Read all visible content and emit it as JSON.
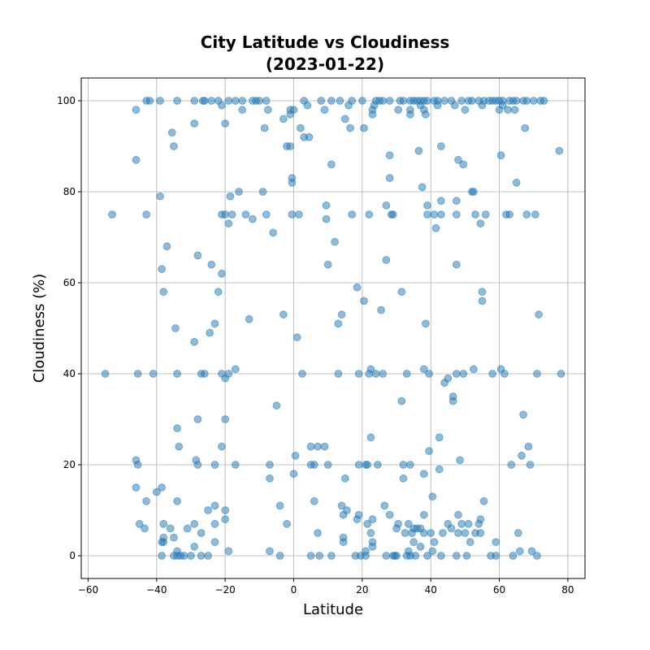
{
  "chart_data": {
    "type": "scatter",
    "title": [
      "City Latitude vs Cloudiness",
      "(2023-01-22)"
    ],
    "xlabel": "Latitude",
    "ylabel": "Cloudiness (%)",
    "xlim": [
      -62,
      85
    ],
    "ylim": [
      -5,
      105
    ],
    "xticks": [
      -60,
      -40,
      -20,
      0,
      20,
      40,
      60,
      80
    ],
    "yticks": [
      0,
      20,
      40,
      60,
      80,
      100
    ],
    "grid": true,
    "marker_color": "#1f77b4",
    "marker_alpha": 0.5,
    "points": [
      [
        -55,
        40
      ],
      [
        -53,
        75
      ],
      [
        -46,
        98
      ],
      [
        -46,
        87
      ],
      [
        -46,
        21
      ],
      [
        -45.5,
        20
      ],
      [
        -46,
        15
      ],
      [
        -45.5,
        40
      ],
      [
        -45,
        7
      ],
      [
        -43,
        100
      ],
      [
        -43,
        75
      ],
      [
        -43,
        12
      ],
      [
        -42,
        100
      ],
      [
        -43.5,
        6
      ],
      [
        -41,
        40
      ],
      [
        -40,
        14
      ],
      [
        -39,
        100
      ],
      [
        -39,
        79
      ],
      [
        -38.5,
        63
      ],
      [
        -38,
        58
      ],
      [
        -38.5,
        15
      ],
      [
        -38,
        7
      ],
      [
        -38,
        4
      ],
      [
        -38,
        3
      ],
      [
        -38.5,
        3
      ],
      [
        -38.5,
        0
      ],
      [
        -37,
        68
      ],
      [
        -36,
        6
      ],
      [
        -35.5,
        93
      ],
      [
        -35,
        90
      ],
      [
        -34.5,
        50
      ],
      [
        -34,
        28
      ],
      [
        -34,
        40
      ],
      [
        -34,
        12
      ],
      [
        -35,
        4
      ],
      [
        -34,
        1
      ],
      [
        -33.5,
        24
      ],
      [
        -34,
        100
      ],
      [
        -35,
        0
      ],
      [
        -34,
        0
      ],
      [
        -33,
        0
      ],
      [
        -32,
        0
      ],
      [
        -31,
        6
      ],
      [
        -30,
        0
      ],
      [
        -29,
        95
      ],
      [
        -29,
        47
      ],
      [
        -29,
        100
      ],
      [
        -29,
        7
      ],
      [
        -29,
        2
      ],
      [
        -28.5,
        21
      ],
      [
        -28,
        66
      ],
      [
        -28,
        30
      ],
      [
        -28,
        20
      ],
      [
        -27,
        40
      ],
      [
        -27,
        5
      ],
      [
        -27,
        0
      ],
      [
        -26.5,
        100
      ],
      [
        -26,
        100
      ],
      [
        -26,
        40
      ],
      [
        -25,
        10
      ],
      [
        -25,
        0
      ],
      [
        -24.5,
        49
      ],
      [
        -24,
        64
      ],
      [
        -24,
        100
      ],
      [
        -23,
        51
      ],
      [
        -23,
        20
      ],
      [
        -23,
        11
      ],
      [
        -23,
        7
      ],
      [
        -23,
        3
      ],
      [
        -22,
        58
      ],
      [
        -22,
        100
      ],
      [
        -21,
        99
      ],
      [
        -21,
        75
      ],
      [
        -21,
        62
      ],
      [
        -21,
        40
      ],
      [
        -21,
        24
      ],
      [
        -20,
        95
      ],
      [
        -20,
        75
      ],
      [
        -20,
        39
      ],
      [
        -20,
        30
      ],
      [
        -20,
        10
      ],
      [
        -20,
        8
      ],
      [
        -19,
        73
      ],
      [
        -19,
        100
      ],
      [
        -19,
        40
      ],
      [
        -18.5,
        79
      ],
      [
        -18,
        75
      ],
      [
        -19,
        1
      ],
      [
        -17,
        100
      ],
      [
        -17,
        41
      ],
      [
        -17,
        20
      ],
      [
        -16,
        80
      ],
      [
        -15,
        100
      ],
      [
        -15,
        98
      ],
      [
        -14,
        75
      ],
      [
        -13,
        52
      ],
      [
        -12,
        100
      ],
      [
        -12,
        74
      ],
      [
        -11,
        100
      ],
      [
        -10,
        100
      ],
      [
        -9,
        80
      ],
      [
        -8.5,
        94
      ],
      [
        -8,
        100
      ],
      [
        -8,
        75
      ],
      [
        -7.5,
        98
      ],
      [
        -7,
        20
      ],
      [
        -7,
        17
      ],
      [
        -7,
        1
      ],
      [
        -6,
        71
      ],
      [
        -5,
        33
      ],
      [
        -4,
        11
      ],
      [
        -4,
        0
      ],
      [
        -3,
        53
      ],
      [
        -3,
        96
      ],
      [
        -2,
        90
      ],
      [
        -2,
        7
      ],
      [
        -1,
        98
      ],
      [
        -1,
        97
      ],
      [
        -1,
        90
      ],
      [
        -0.5,
        83
      ],
      [
        -0.5,
        82
      ],
      [
        -0.5,
        75
      ],
      [
        0,
        18
      ],
      [
        0,
        98
      ],
      [
        0.5,
        22
      ],
      [
        1,
        48
      ],
      [
        1.5,
        75
      ],
      [
        2,
        94
      ],
      [
        2.5,
        40
      ],
      [
        3,
        92
      ],
      [
        3,
        100
      ],
      [
        4,
        99
      ],
      [
        4.5,
        92
      ],
      [
        5,
        24
      ],
      [
        5,
        20
      ],
      [
        5,
        0
      ],
      [
        6,
        12
      ],
      [
        6,
        20
      ],
      [
        7,
        24
      ],
      [
        7,
        5
      ],
      [
        7.5,
        0
      ],
      [
        8,
        100
      ],
      [
        9,
        24
      ],
      [
        9,
        98
      ],
      [
        9.5,
        77
      ],
      [
        9.5,
        74
      ],
      [
        10,
        64
      ],
      [
        10,
        20
      ],
      [
        11,
        86
      ],
      [
        11,
        100
      ],
      [
        11,
        0
      ],
      [
        12,
        69
      ],
      [
        13,
        51
      ],
      [
        13,
        40
      ],
      [
        13.5,
        100
      ],
      [
        14,
        53
      ],
      [
        14,
        11
      ],
      [
        14.5,
        9
      ],
      [
        14.5,
        4
      ],
      [
        14.5,
        3
      ],
      [
        15,
        96
      ],
      [
        15,
        17
      ],
      [
        15.5,
        10
      ],
      [
        16,
        99
      ],
      [
        16.5,
        94
      ],
      [
        17,
        75
      ],
      [
        17,
        100
      ],
      [
        18,
        0
      ],
      [
        18.5,
        8
      ],
      [
        18.5,
        59
      ],
      [
        19,
        20
      ],
      [
        19,
        40
      ],
      [
        19,
        9
      ],
      [
        19.5,
        0
      ],
      [
        20,
        100
      ],
      [
        20.5,
        94
      ],
      [
        20.5,
        56
      ],
      [
        21,
        1
      ],
      [
        21,
        0
      ],
      [
        21,
        20
      ],
      [
        21.5,
        20
      ],
      [
        21.5,
        7
      ],
      [
        22,
        40
      ],
      [
        22,
        75
      ],
      [
        22.5,
        5
      ],
      [
        22.5,
        41
      ],
      [
        22.5,
        26
      ],
      [
        23,
        98
      ],
      [
        23,
        97
      ],
      [
        23,
        3
      ],
      [
        23,
        2
      ],
      [
        23,
        8
      ],
      [
        23.5,
        99
      ],
      [
        24,
        100
      ],
      [
        24,
        40
      ],
      [
        24.5,
        20
      ],
      [
        25,
        100
      ],
      [
        25.5,
        54
      ],
      [
        26,
        100
      ],
      [
        26,
        40
      ],
      [
        26.5,
        11
      ],
      [
        27,
        77
      ],
      [
        27,
        65
      ],
      [
        27,
        0
      ],
      [
        28,
        88
      ],
      [
        28,
        83
      ],
      [
        28,
        100
      ],
      [
        28,
        9
      ],
      [
        28.5,
        75
      ],
      [
        29,
        75
      ],
      [
        29,
        0
      ],
      [
        29.5,
        0
      ],
      [
        30,
        6
      ],
      [
        30,
        0
      ],
      [
        30.5,
        98
      ],
      [
        30.5,
        7
      ],
      [
        31,
        100
      ],
      [
        31.5,
        34
      ],
      [
        31.5,
        58
      ],
      [
        32,
        100
      ],
      [
        32,
        20
      ],
      [
        32,
        17
      ],
      [
        32.5,
        5
      ],
      [
        33,
        40
      ],
      [
        33,
        0
      ],
      [
        33.5,
        7
      ],
      [
        33.5,
        1
      ],
      [
        34,
        100
      ],
      [
        34,
        97
      ],
      [
        34,
        98
      ],
      [
        34,
        20
      ],
      [
        34,
        0
      ],
      [
        34.5,
        5
      ],
      [
        35,
        100
      ],
      [
        35,
        6
      ],
      [
        35,
        3
      ],
      [
        35.5,
        0
      ],
      [
        36,
        100
      ],
      [
        36,
        6
      ],
      [
        36.5,
        89
      ],
      [
        37,
        99
      ],
      [
        37,
        100
      ],
      [
        37,
        6
      ],
      [
        37,
        2
      ],
      [
        37.5,
        81
      ],
      [
        38,
        98
      ],
      [
        38,
        100
      ],
      [
        38,
        41
      ],
      [
        38,
        9
      ],
      [
        38,
        5
      ],
      [
        38,
        18
      ],
      [
        38.5,
        51
      ],
      [
        38.5,
        97
      ],
      [
        39,
        77
      ],
      [
        39,
        75
      ],
      [
        39,
        100
      ],
      [
        39,
        0
      ],
      [
        39.5,
        40
      ],
      [
        39.5,
        23
      ],
      [
        40,
        5
      ],
      [
        40.5,
        1
      ],
      [
        40.5,
        13
      ],
      [
        41,
        100
      ],
      [
        41,
        75
      ],
      [
        41,
        3
      ],
      [
        41.5,
        72
      ],
      [
        42,
        99
      ],
      [
        42,
        100
      ],
      [
        42.5,
        26
      ],
      [
        42.5,
        19
      ],
      [
        43,
        90
      ],
      [
        43,
        78
      ],
      [
        43,
        75
      ],
      [
        43,
        0
      ],
      [
        43.5,
        5
      ],
      [
        44,
        38
      ],
      [
        44,
        100
      ],
      [
        45,
        39
      ],
      [
        45,
        7
      ],
      [
        46,
        100
      ],
      [
        46,
        6
      ],
      [
        46.5,
        35
      ],
      [
        46.5,
        34
      ],
      [
        47,
        99
      ],
      [
        47.5,
        78
      ],
      [
        47.5,
        75
      ],
      [
        47.5,
        64
      ],
      [
        47.5,
        40
      ],
      [
        47.5,
        0
      ],
      [
        48,
        87
      ],
      [
        48,
        9
      ],
      [
        48,
        5
      ],
      [
        48.5,
        21
      ],
      [
        49,
        100
      ],
      [
        49,
        7
      ],
      [
        49.5,
        40
      ],
      [
        49.5,
        86
      ],
      [
        50,
        98
      ],
      [
        50,
        5
      ],
      [
        50.5,
        0
      ],
      [
        51,
        100
      ],
      [
        51,
        7
      ],
      [
        51.5,
        3
      ],
      [
        52,
        100
      ],
      [
        52,
        80
      ],
      [
        52.5,
        80
      ],
      [
        52.5,
        41
      ],
      [
        53,
        75
      ],
      [
        53,
        5
      ],
      [
        54,
        7
      ],
      [
        54,
        100
      ],
      [
        54.5,
        73
      ],
      [
        54.5,
        8
      ],
      [
        54.5,
        5
      ],
      [
        55,
        58
      ],
      [
        55,
        56
      ],
      [
        55,
        99
      ],
      [
        55.5,
        100
      ],
      [
        55.5,
        12
      ],
      [
        56,
        75
      ],
      [
        57,
        100
      ],
      [
        57.5,
        0
      ],
      [
        58,
        100
      ],
      [
        58,
        40
      ],
      [
        59,
        100
      ],
      [
        59,
        3
      ],
      [
        59,
        0
      ],
      [
        60,
        100
      ],
      [
        60,
        98
      ],
      [
        60.5,
        41
      ],
      [
        60.5,
        88
      ],
      [
        61,
        99
      ],
      [
        61,
        100
      ],
      [
        61.5,
        40
      ],
      [
        62,
        75
      ],
      [
        62.5,
        98
      ],
      [
        63,
        100
      ],
      [
        63,
        75
      ],
      [
        63.5,
        20
      ],
      [
        64,
        100
      ],
      [
        64,
        0
      ],
      [
        64.5,
        98
      ],
      [
        65,
        100
      ],
      [
        65,
        82
      ],
      [
        65.5,
        5
      ],
      [
        66,
        1
      ],
      [
        66.5,
        22
      ],
      [
        67,
        100
      ],
      [
        67,
        31
      ],
      [
        67.5,
        94
      ],
      [
        68,
        75
      ],
      [
        68,
        100
      ],
      [
        68.5,
        24
      ],
      [
        69,
        20
      ],
      [
        69.5,
        1
      ],
      [
        70,
        100
      ],
      [
        70.5,
        75
      ],
      [
        71,
        40
      ],
      [
        71,
        0
      ],
      [
        71.5,
        53
      ],
      [
        72,
        100
      ],
      [
        73,
        100
      ],
      [
        77.5,
        89
      ],
      [
        78,
        40
      ]
    ]
  }
}
